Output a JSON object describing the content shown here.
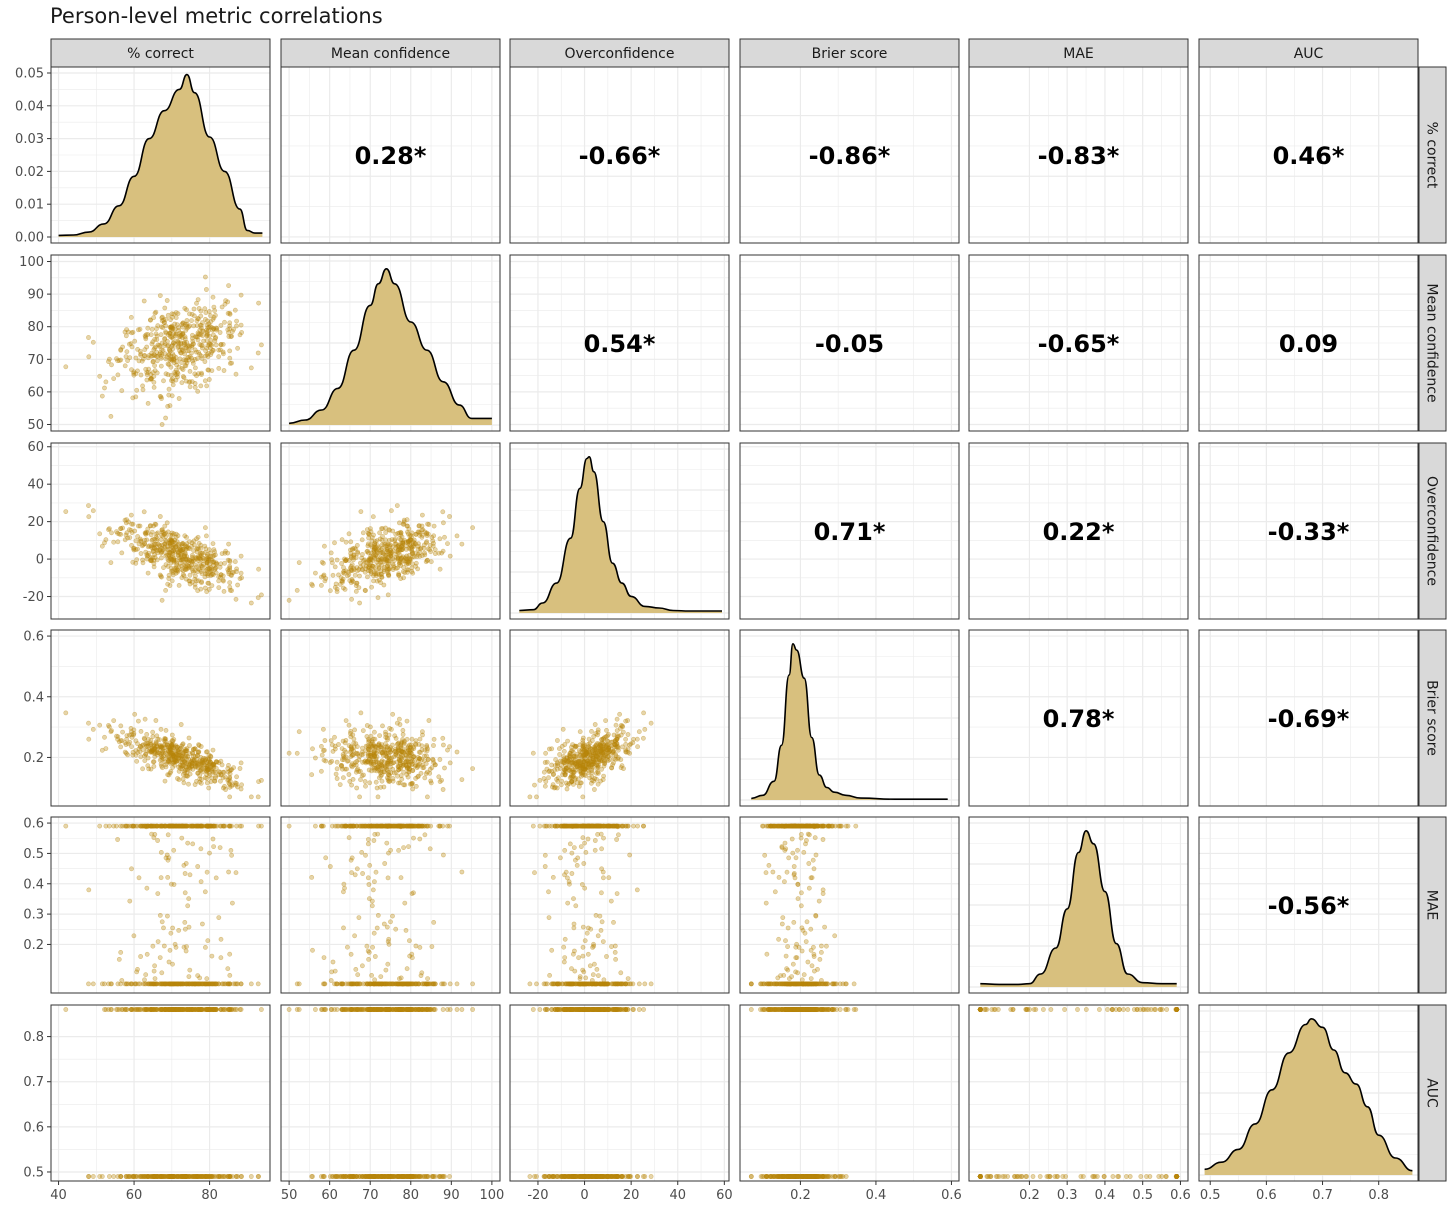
{
  "title": "Person-level metric correlations",
  "colors": {
    "point": "#b8860b",
    "density_fill": "#d8c07e",
    "density_line": "#000000",
    "strip_bg": "#d9d9d9",
    "grid": "#ebebeb",
    "panel_border": "#333333"
  },
  "chart_data": {
    "type": "scatter",
    "variables": [
      {
        "name": "% correct",
        "range": [
          38,
          96
        ],
        "ticks": [
          40,
          60,
          80
        ],
        "tick_labels": [
          "40",
          "60",
          "80"
        ],
        "density_y_range": [
          0,
          0.05
        ],
        "density_ticks": [
          0,
          0.01,
          0.02,
          0.03,
          0.04,
          0.05
        ],
        "density_tick_labels": [
          "0.00",
          "0.01",
          "0.02",
          "0.03",
          "0.04",
          "0.05"
        ],
        "mean": 72,
        "sd": 8,
        "point_min": 40,
        "point_max": 94,
        "density_curve": [
          [
            40,
            0.0005
          ],
          [
            44,
            0.0006
          ],
          [
            48,
            0.0015
          ],
          [
            52,
            0.004
          ],
          [
            56,
            0.0095
          ],
          [
            60,
            0.0185
          ],
          [
            64,
            0.03
          ],
          [
            68,
            0.0385
          ],
          [
            72,
            0.045
          ],
          [
            74,
            0.0495
          ],
          [
            76,
            0.044
          ],
          [
            80,
            0.0305
          ],
          [
            84,
            0.02
          ],
          [
            88,
            0.0085
          ],
          [
            90,
            0.002
          ],
          [
            92,
            0.0012
          ],
          [
            94,
            0.0012
          ]
        ]
      },
      {
        "name": "Mean confidence",
        "range": [
          48,
          102
        ],
        "ticks": [
          50,
          60,
          70,
          80,
          90,
          100
        ],
        "tick_labels": [
          "50",
          "60",
          "70",
          "80",
          "90",
          "100"
        ],
        "mean": 74,
        "sd": 7,
        "point_min": 50,
        "point_max": 100,
        "density_curve": [
          [
            50,
            0.001
          ],
          [
            54,
            0.003
          ],
          [
            58,
            0.009
          ],
          [
            62,
            0.022
          ],
          [
            66,
            0.045
          ],
          [
            70,
            0.072
          ],
          [
            72,
            0.085
          ],
          [
            74,
            0.094
          ],
          [
            76,
            0.085
          ],
          [
            80,
            0.062
          ],
          [
            84,
            0.045
          ],
          [
            88,
            0.026
          ],
          [
            92,
            0.012
          ],
          [
            95,
            0.004
          ],
          [
            98,
            0.004
          ],
          [
            100,
            0.004
          ]
        ]
      },
      {
        "name": "Overconfidence",
        "range": [
          -32,
          62
        ],
        "ticks": [
          -20,
          0,
          20,
          40,
          60
        ],
        "tick_labels": [
          "-20",
          "0",
          "20",
          "40",
          "60"
        ],
        "mean": 2,
        "sd": 9,
        "point_min": -28,
        "point_max": 59,
        "density_curve": [
          [
            -28,
            0.0015
          ],
          [
            -22,
            0.002
          ],
          [
            -18,
            0.006
          ],
          [
            -12,
            0.018
          ],
          [
            -6,
            0.045
          ],
          [
            -2,
            0.075
          ],
          [
            1,
            0.093
          ],
          [
            2,
            0.094
          ],
          [
            4,
            0.085
          ],
          [
            8,
            0.055
          ],
          [
            12,
            0.03
          ],
          [
            16,
            0.018
          ],
          [
            20,
            0.01
          ],
          [
            26,
            0.004
          ],
          [
            32,
            0.003
          ],
          [
            38,
            0.0015
          ],
          [
            45,
            0.0012
          ],
          [
            59,
            0.0012
          ]
        ]
      },
      {
        "name": "Brier score",
        "range": [
          0.04,
          0.62
        ],
        "ticks": [
          0.2,
          0.4,
          0.6
        ],
        "tick_labels": [
          "0.2",
          "0.4",
          "0.6"
        ],
        "mean": 0.2,
        "sd": 0.04,
        "point_min": 0.07,
        "point_max": 0.59,
        "density_curve": [
          [
            0.07,
            0.1
          ],
          [
            0.1,
            0.3
          ],
          [
            0.13,
            1.2
          ],
          [
            0.15,
            3.5
          ],
          [
            0.17,
            8.0
          ],
          [
            0.18,
            10.0
          ],
          [
            0.19,
            9.6
          ],
          [
            0.21,
            7.8
          ],
          [
            0.23,
            4.0
          ],
          [
            0.25,
            1.6
          ],
          [
            0.27,
            0.8
          ],
          [
            0.29,
            0.5
          ],
          [
            0.32,
            0.3
          ],
          [
            0.36,
            0.12
          ],
          [
            0.45,
            0.05
          ],
          [
            0.59,
            0.05
          ]
        ]
      },
      {
        "name": "MAE",
        "range": [
          0.04,
          0.62
        ],
        "ticks": [
          0.2,
          0.3,
          0.4,
          0.5,
          0.6
        ],
        "tick_labels": [
          "0.2",
          "0.3",
          "0.4",
          "0.5",
          "0.6"
        ],
        "mean": 0.35,
        "sd": 0.05,
        "point_min": 0.07,
        "point_max": 0.59,
        "density_curve": [
          [
            0.07,
            0.15
          ],
          [
            0.12,
            0.12
          ],
          [
            0.17,
            0.12
          ],
          [
            0.2,
            0.15
          ],
          [
            0.23,
            0.6
          ],
          [
            0.27,
            1.8
          ],
          [
            0.3,
            3.6
          ],
          [
            0.33,
            6.2
          ],
          [
            0.35,
            7.2
          ],
          [
            0.37,
            6.6
          ],
          [
            0.4,
            4.4
          ],
          [
            0.43,
            2.0
          ],
          [
            0.46,
            0.6
          ],
          [
            0.5,
            0.2
          ],
          [
            0.55,
            0.15
          ],
          [
            0.59,
            0.15
          ]
        ]
      },
      {
        "name": "AUC",
        "range": [
          0.48,
          0.87
        ],
        "ticks": [
          0.5,
          0.6,
          0.7,
          0.8
        ],
        "tick_labels": [
          "0.5",
          "0.6",
          "0.7",
          "0.8"
        ],
        "mean": 0.68,
        "sd": 0.065,
        "point_min": 0.49,
        "point_max": 0.86,
        "density_curve": [
          [
            0.49,
            0.2
          ],
          [
            0.52,
            0.45
          ],
          [
            0.55,
            0.9
          ],
          [
            0.58,
            1.8
          ],
          [
            0.61,
            3.0
          ],
          [
            0.64,
            4.3
          ],
          [
            0.67,
            5.3
          ],
          [
            0.68,
            5.5
          ],
          [
            0.7,
            5.2
          ],
          [
            0.72,
            4.4
          ],
          [
            0.74,
            3.6
          ],
          [
            0.76,
            3.2
          ],
          [
            0.78,
            2.4
          ],
          [
            0.8,
            1.4
          ],
          [
            0.83,
            0.6
          ],
          [
            0.86,
            0.15
          ]
        ]
      }
    ],
    "correlations": [
      {
        "row": 0,
        "col": 1,
        "label": "0.28*",
        "r": 0.28
      },
      {
        "row": 0,
        "col": 2,
        "label": "-0.66*",
        "r": -0.66
      },
      {
        "row": 0,
        "col": 3,
        "label": "-0.86*",
        "r": -0.86
      },
      {
        "row": 0,
        "col": 4,
        "label": "-0.83*",
        "r": -0.83
      },
      {
        "row": 0,
        "col": 5,
        "label": "0.46*",
        "r": 0.46
      },
      {
        "row": 1,
        "col": 2,
        "label": "0.54*",
        "r": 0.54
      },
      {
        "row": 1,
        "col": 3,
        "label": "-0.05",
        "r": -0.05
      },
      {
        "row": 1,
        "col": 4,
        "label": "-0.65*",
        "r": -0.65
      },
      {
        "row": 1,
        "col": 5,
        "label": "0.09",
        "r": 0.09
      },
      {
        "row": 2,
        "col": 3,
        "label": "0.71*",
        "r": 0.71
      },
      {
        "row": 2,
        "col": 4,
        "label": "0.22*",
        "r": 0.22
      },
      {
        "row": 2,
        "col": 5,
        "label": "-0.33*",
        "r": -0.33
      },
      {
        "row": 3,
        "col": 4,
        "label": "0.78*",
        "r": 0.78
      },
      {
        "row": 3,
        "col": 5,
        "label": "-0.69*",
        "r": -0.69
      },
      {
        "row": 4,
        "col": 5,
        "label": "-0.56*",
        "r": -0.56
      }
    ],
    "n_points": 500
  }
}
